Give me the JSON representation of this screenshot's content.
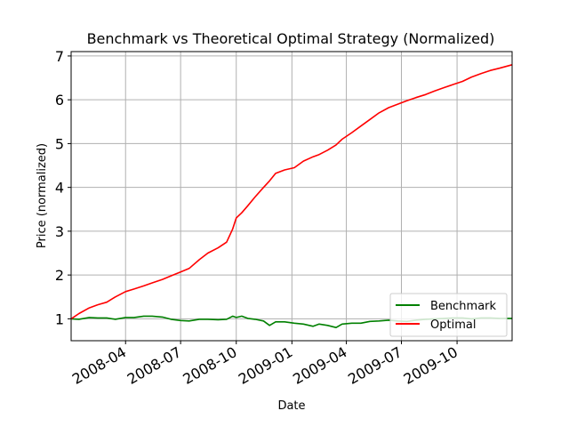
{
  "chart_data": {
    "type": "line",
    "title": "Benchmark vs Theoretical Optimal Strategy (Normalized)",
    "xlabel": "Date",
    "ylabel": "Price (normalized)",
    "xlim": [
      "2008-01-02",
      "2009-12-31"
    ],
    "ylim": [
      0.5,
      7.1
    ],
    "xticks": [
      "2008-04-01",
      "2008-07-01",
      "2008-10-01",
      "2009-01-01",
      "2009-04-01",
      "2009-07-01",
      "2009-10-01"
    ],
    "xtick_labels": [
      "2008-04",
      "2008-07",
      "2008-10",
      "2009-01",
      "2009-04",
      "2009-07",
      "2009-10"
    ],
    "yticks": [
      1,
      2,
      3,
      4,
      5,
      6,
      7
    ],
    "ytick_labels": [
      "1",
      "2",
      "3",
      "4",
      "5",
      "6",
      "7"
    ],
    "grid": true,
    "legend_position": "lower-right",
    "series": [
      {
        "name": "Benchmark",
        "color": "#008000",
        "points": [
          [
            "2008-01-02",
            1.0
          ],
          [
            "2008-01-15",
            0.99
          ],
          [
            "2008-02-01",
            1.03
          ],
          [
            "2008-02-15",
            1.02
          ],
          [
            "2008-03-01",
            1.02
          ],
          [
            "2008-03-15",
            0.99
          ],
          [
            "2008-04-01",
            1.03
          ],
          [
            "2008-04-15",
            1.03
          ],
          [
            "2008-05-01",
            1.06
          ],
          [
            "2008-05-15",
            1.06
          ],
          [
            "2008-06-01",
            1.04
          ],
          [
            "2008-06-15",
            0.99
          ],
          [
            "2008-07-01",
            0.96
          ],
          [
            "2008-07-15",
            0.95
          ],
          [
            "2008-08-01",
            0.99
          ],
          [
            "2008-08-15",
            0.99
          ],
          [
            "2008-09-01",
            0.98
          ],
          [
            "2008-09-15",
            0.99
          ],
          [
            "2008-09-25",
            1.06
          ],
          [
            "2008-10-01",
            1.03
          ],
          [
            "2008-10-10",
            1.06
          ],
          [
            "2008-10-20",
            1.01
          ],
          [
            "2008-11-01",
            0.99
          ],
          [
            "2008-11-15",
            0.95
          ],
          [
            "2008-11-25",
            0.85
          ],
          [
            "2008-12-05",
            0.93
          ],
          [
            "2008-12-20",
            0.93
          ],
          [
            "2009-01-05",
            0.9
          ],
          [
            "2009-01-20",
            0.88
          ],
          [
            "2009-02-05",
            0.83
          ],
          [
            "2009-02-15",
            0.88
          ],
          [
            "2009-03-01",
            0.85
          ],
          [
            "2009-03-15",
            0.8
          ],
          [
            "2009-03-25",
            0.88
          ],
          [
            "2009-04-10",
            0.9
          ],
          [
            "2009-04-25",
            0.9
          ],
          [
            "2009-05-10",
            0.94
          ],
          [
            "2009-05-25",
            0.95
          ],
          [
            "2009-06-10",
            0.97
          ],
          [
            "2009-06-25",
            0.95
          ],
          [
            "2009-07-10",
            0.94
          ],
          [
            "2009-07-25",
            0.97
          ],
          [
            "2009-08-10",
            0.99
          ],
          [
            "2009-08-25",
            1.0
          ],
          [
            "2009-09-10",
            1.01
          ],
          [
            "2009-09-25",
            1.02
          ],
          [
            "2009-10-10",
            1.02
          ],
          [
            "2009-10-25",
            1.0
          ],
          [
            "2009-11-10",
            1.02
          ],
          [
            "2009-11-25",
            1.02
          ],
          [
            "2009-12-10",
            1.01
          ],
          [
            "2009-12-31",
            1.01
          ]
        ]
      },
      {
        "name": "Optimal",
        "color": "#ff0000",
        "points": [
          [
            "2008-01-02",
            1.0
          ],
          [
            "2008-01-15",
            1.12
          ],
          [
            "2008-02-01",
            1.25
          ],
          [
            "2008-02-15",
            1.32
          ],
          [
            "2008-03-01",
            1.38
          ],
          [
            "2008-03-15",
            1.5
          ],
          [
            "2008-04-01",
            1.62
          ],
          [
            "2008-04-15",
            1.68
          ],
          [
            "2008-05-01",
            1.75
          ],
          [
            "2008-05-15",
            1.82
          ],
          [
            "2008-06-01",
            1.9
          ],
          [
            "2008-06-15",
            1.98
          ],
          [
            "2008-07-01",
            2.07
          ],
          [
            "2008-07-15",
            2.15
          ],
          [
            "2008-08-01",
            2.35
          ],
          [
            "2008-08-15",
            2.5
          ],
          [
            "2008-09-01",
            2.62
          ],
          [
            "2008-09-15",
            2.75
          ],
          [
            "2008-09-25",
            3.05
          ],
          [
            "2008-10-01",
            3.3
          ],
          [
            "2008-10-10",
            3.42
          ],
          [
            "2008-10-20",
            3.58
          ],
          [
            "2008-11-01",
            3.78
          ],
          [
            "2008-11-15",
            4.0
          ],
          [
            "2008-11-25",
            4.15
          ],
          [
            "2008-12-05",
            4.32
          ],
          [
            "2008-12-20",
            4.4
          ],
          [
            "2009-01-05",
            4.45
          ],
          [
            "2009-01-20",
            4.6
          ],
          [
            "2009-02-05",
            4.7
          ],
          [
            "2009-02-15",
            4.75
          ],
          [
            "2009-03-01",
            4.85
          ],
          [
            "2009-03-15",
            4.97
          ],
          [
            "2009-03-25",
            5.1
          ],
          [
            "2009-04-10",
            5.25
          ],
          [
            "2009-04-25",
            5.4
          ],
          [
            "2009-05-10",
            5.55
          ],
          [
            "2009-05-25",
            5.7
          ],
          [
            "2009-06-10",
            5.82
          ],
          [
            "2009-06-25",
            5.9
          ],
          [
            "2009-07-10",
            5.98
          ],
          [
            "2009-07-25",
            6.05
          ],
          [
            "2009-08-10",
            6.12
          ],
          [
            "2009-08-25",
            6.2
          ],
          [
            "2009-09-10",
            6.28
          ],
          [
            "2009-09-25",
            6.35
          ],
          [
            "2009-10-10",
            6.42
          ],
          [
            "2009-10-25",
            6.52
          ],
          [
            "2009-11-10",
            6.6
          ],
          [
            "2009-11-25",
            6.67
          ],
          [
            "2009-12-10",
            6.72
          ],
          [
            "2009-12-31",
            6.8
          ]
        ]
      }
    ]
  }
}
